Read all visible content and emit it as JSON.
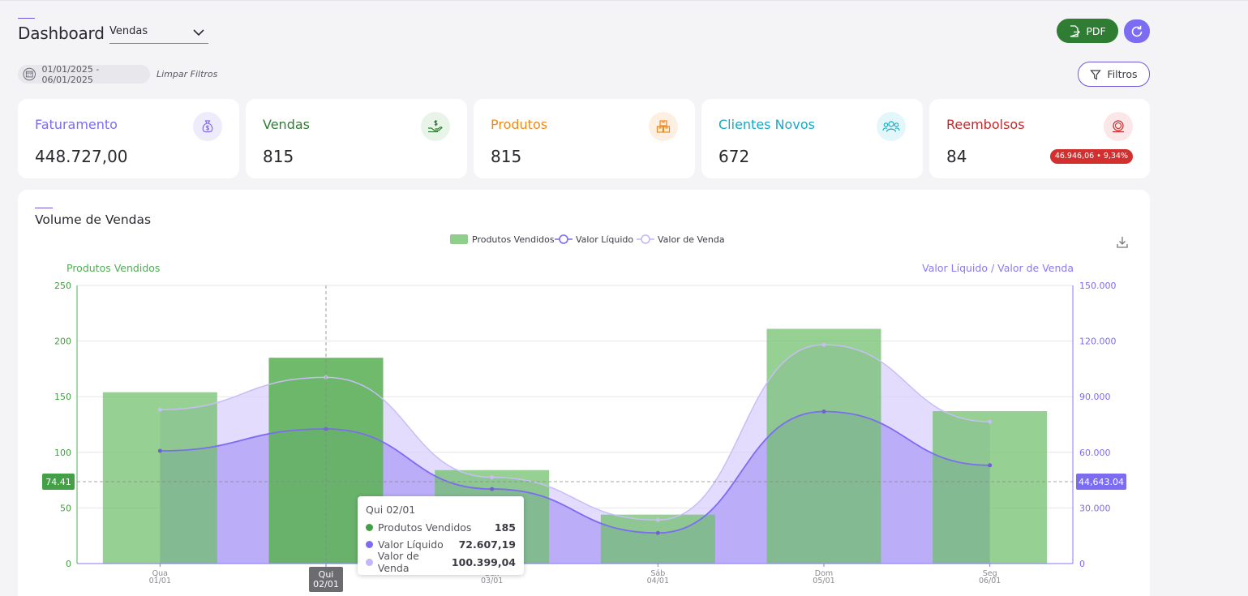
{
  "header": {
    "title": "Dashboard",
    "select_value": "Vendas",
    "pdf_label": "PDF"
  },
  "filters": {
    "date_range": "01/01/2025 - 06/01/2025",
    "clear_label": "Limpar Filtros",
    "filters_label": "Filtros"
  },
  "kpis": [
    {
      "label": "Faturamento",
      "value": "448.727,00",
      "color": "#7c6cf2",
      "icon": "money-bag-icon"
    },
    {
      "label": "Vendas",
      "value": "815",
      "color": "#2e7d32",
      "icon": "hand-coin-icon"
    },
    {
      "label": "Produtos",
      "value": "815",
      "color": "#ef8a1a",
      "icon": "boxes-icon"
    },
    {
      "label": "Clientes Novos",
      "value": "672",
      "color": "#17a9c4",
      "icon": "users-icon"
    },
    {
      "label": "Reembolsos",
      "value": "84",
      "color": "#c62828",
      "icon": "refund-icon",
      "badge": "46.946,06 • 9,34%"
    }
  ],
  "volume_panel": {
    "title": "Volume de Vendas"
  },
  "chart_data": {
    "type": "bar",
    "title": "",
    "categories": [
      "Qua 01/01",
      "Qui 02/01",
      "Sex 03/01",
      "Sáb 04/01",
      "Dom 05/01",
      "Seg 06/01"
    ],
    "x_ticks": [
      [
        "Qua",
        "01/01"
      ],
      [
        "Qui",
        "02/01"
      ],
      [
        "Sex",
        "03/01"
      ],
      [
        "Sáb",
        "04/01"
      ],
      [
        "Dom",
        "05/01"
      ],
      [
        "Seg",
        "06/01"
      ]
    ],
    "y_left_label": "Produtos Vendidos",
    "y_right_label": "Valor Líquido / Valor de Venda",
    "y_left_range": [
      0,
      250
    ],
    "y_left_ticks": [
      "250",
      "200",
      "150",
      "100",
      "50",
      "0"
    ],
    "y_right_range": [
      0,
      150000
    ],
    "y_right_ticks": [
      "150.000",
      "120.000",
      "90.000",
      "60.000",
      "30.000",
      "0"
    ],
    "grid": true,
    "legend_placement": "top-center",
    "series": [
      {
        "name": "Produtos Vendidos",
        "type": "bar",
        "axis": "left",
        "color": "#6dbf6a",
        "values": [
          154,
          185,
          84,
          44,
          211,
          137
        ]
      },
      {
        "name": "Valor Líquido",
        "type": "area",
        "axis": "right",
        "color": "#8a74f0",
        "values": [
          60800,
          72607.19,
          40200,
          16500,
          82000,
          53000
        ]
      },
      {
        "name": "Valor de Venda",
        "type": "area",
        "axis": "right",
        "color": "#c8bdf7",
        "values": [
          83000,
          100399.04,
          46500,
          23500,
          118000,
          76500
        ]
      }
    ],
    "crosshair": {
      "left_value": "74.41",
      "right_value": "44,643.04",
      "category": "Qui 02/01"
    },
    "tooltip": {
      "title": "Qui 02/01",
      "rows": [
        {
          "name": "Produtos Vendidos",
          "value": "185",
          "color": "#43a047"
        },
        {
          "name": "Valor Líquido",
          "value": "72.607,19",
          "color": "#7c6cf2"
        },
        {
          "name": "Valor de Venda",
          "value": "100.399,04",
          "color": "#c3b6fa"
        }
      ]
    }
  }
}
